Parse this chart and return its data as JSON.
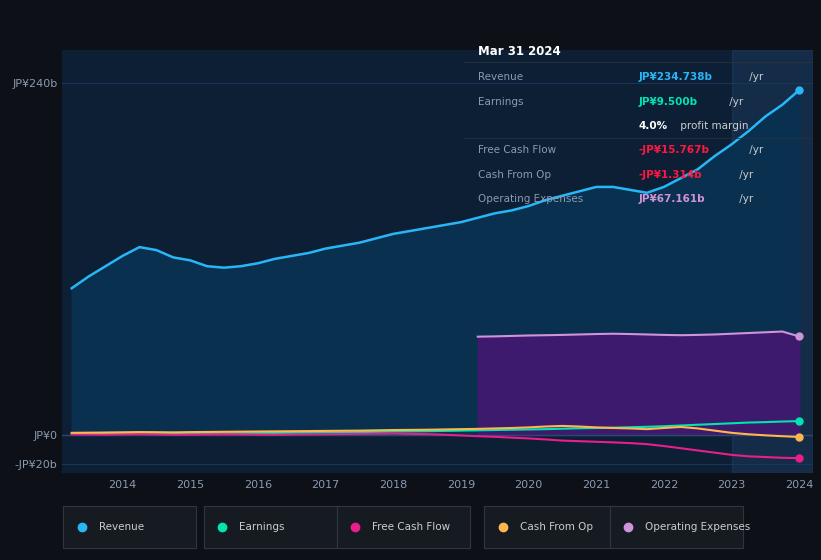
{
  "bg_color": "#0d1117",
  "plot_bg_color": "#0d1f35",
  "revenue_color": "#29b6f6",
  "revenue_fill": "#0a3050",
  "earnings_color": "#00e5b0",
  "fcf_color": "#e91e8c",
  "cashop_color": "#ffb74d",
  "opex_color": "#ce93d8",
  "opex_fill": "#3d1a6e",
  "grid_color": "#1a3a5c",
  "legend_bg": "#161b22",
  "legend_border": "#30363d",
  "tooltip_bg": "#0d1117",
  "tooltip_border": "#2d333b",
  "years": [
    2013.25,
    2013.5,
    2013.75,
    2014.0,
    2014.25,
    2014.5,
    2014.75,
    2015.0,
    2015.25,
    2015.5,
    2015.75,
    2016.0,
    2016.25,
    2016.5,
    2016.75,
    2017.0,
    2017.25,
    2017.5,
    2017.75,
    2018.0,
    2018.25,
    2018.5,
    2018.75,
    2019.0,
    2019.25,
    2019.5,
    2019.75,
    2020.0,
    2020.25,
    2020.5,
    2020.75,
    2021.0,
    2021.25,
    2021.5,
    2021.75,
    2022.0,
    2022.25,
    2022.5,
    2022.75,
    2023.0,
    2023.25,
    2023.5,
    2023.75,
    2024.0
  ],
  "revenue": [
    100,
    108,
    115,
    122,
    128,
    126,
    121,
    119,
    115,
    114,
    115,
    117,
    120,
    122,
    124,
    127,
    129,
    131,
    134,
    137,
    139,
    141,
    143,
    145,
    148,
    151,
    153,
    156,
    160,
    163,
    166,
    169,
    169,
    167,
    165,
    169,
    175,
    181,
    190,
    198,
    207,
    217,
    225,
    235
  ],
  "earnings": [
    1.0,
    1.2,
    1.4,
    1.6,
    1.8,
    1.6,
    1.4,
    1.3,
    1.2,
    1.1,
    1.2,
    1.3,
    1.4,
    1.5,
    1.6,
    1.7,
    1.8,
    2.0,
    2.2,
    2.4,
    2.5,
    2.6,
    2.8,
    3.0,
    3.2,
    3.4,
    3.6,
    3.8,
    4.0,
    4.3,
    4.6,
    4.8,
    5.0,
    5.3,
    5.6,
    6.0,
    6.5,
    7.0,
    7.5,
    8.0,
    8.5,
    8.8,
    9.2,
    9.5
  ],
  "free_cash_flow": [
    0.5,
    0.4,
    0.3,
    0.5,
    0.6,
    0.4,
    0.2,
    0.3,
    0.4,
    0.5,
    0.4,
    0.3,
    0.2,
    0.4,
    0.5,
    0.6,
    0.7,
    0.8,
    0.9,
    1.0,
    0.8,
    0.6,
    0.2,
    -0.3,
    -0.8,
    -1.2,
    -1.8,
    -2.3,
    -3.0,
    -3.8,
    -4.2,
    -4.6,
    -5.0,
    -5.5,
    -6.2,
    -7.5,
    -9.0,
    -10.5,
    -12.0,
    -13.5,
    -14.5,
    -15.0,
    -15.5,
    -15.767
  ],
  "cash_from_op": [
    1.5,
    1.6,
    1.7,
    1.8,
    2.0,
    1.9,
    1.8,
    2.0,
    2.1,
    2.2,
    2.3,
    2.4,
    2.5,
    2.6,
    2.7,
    2.8,
    2.9,
    3.0,
    3.2,
    3.4,
    3.5,
    3.6,
    3.8,
    4.0,
    4.2,
    4.5,
    4.8,
    5.2,
    5.8,
    6.2,
    5.8,
    5.2,
    4.8,
    4.5,
    4.0,
    4.8,
    5.5,
    4.5,
    3.0,
    1.5,
    0.5,
    -0.2,
    -0.8,
    -1.314
  ],
  "op_expenses_years": [
    2019.25,
    2019.5,
    2019.75,
    2020.0,
    2020.25,
    2020.5,
    2020.75,
    2021.0,
    2021.25,
    2021.5,
    2021.75,
    2022.0,
    2022.25,
    2022.5,
    2022.75,
    2023.0,
    2023.25,
    2023.5,
    2023.75,
    2024.0
  ],
  "op_expenses": [
    67.0,
    67.2,
    67.5,
    67.8,
    68.0,
    68.2,
    68.5,
    68.8,
    69.0,
    68.8,
    68.5,
    68.2,
    68.0,
    68.2,
    68.5,
    69.0,
    69.5,
    70.0,
    70.5,
    67.161
  ],
  "ytick_vals": [
    -20,
    0,
    240
  ],
  "ytick_labels": [
    "-JP¥20b",
    "JP¥0",
    "JP¥240b"
  ],
  "ylim": [
    -26,
    262
  ],
  "xlim_start": 2013.1,
  "xlim_end": 2024.2,
  "xtick_vals": [
    2014,
    2015,
    2016,
    2017,
    2018,
    2019,
    2020,
    2021,
    2022,
    2023,
    2024
  ],
  "shade_start": 2023.0,
  "tooltip_title": "Mar 31 2024",
  "tooltip_rows": [
    {
      "label": "Revenue",
      "value": "JP¥234.738b",
      "suffix": " /yr",
      "val_color": "#29b6f6"
    },
    {
      "label": "Earnings",
      "value": "JP¥9.500b",
      "suffix": " /yr",
      "val_color": "#00e5b0"
    },
    {
      "label": "",
      "value": "4.0%",
      "suffix": " profit margin",
      "val_color": "#ffffff"
    },
    {
      "label": "Free Cash Flow",
      "value": "-JP¥15.767b",
      "suffix": " /yr",
      "val_color": "#ff1744"
    },
    {
      "label": "Cash From Op",
      "value": "-JP¥1.314b",
      "suffix": " /yr",
      "val_color": "#ff1744"
    },
    {
      "label": "Operating Expenses",
      "value": "JP¥67.161b",
      "suffix": " /yr",
      "val_color": "#ce93d8"
    }
  ],
  "legend_items": [
    {
      "label": "Revenue",
      "color": "#29b6f6"
    },
    {
      "label": "Earnings",
      "color": "#00e5b0"
    },
    {
      "label": "Free Cash Flow",
      "color": "#e91e8c"
    },
    {
      "label": "Cash From Op",
      "color": "#ffb74d"
    },
    {
      "label": "Operating Expenses",
      "color": "#ce93d8"
    }
  ]
}
